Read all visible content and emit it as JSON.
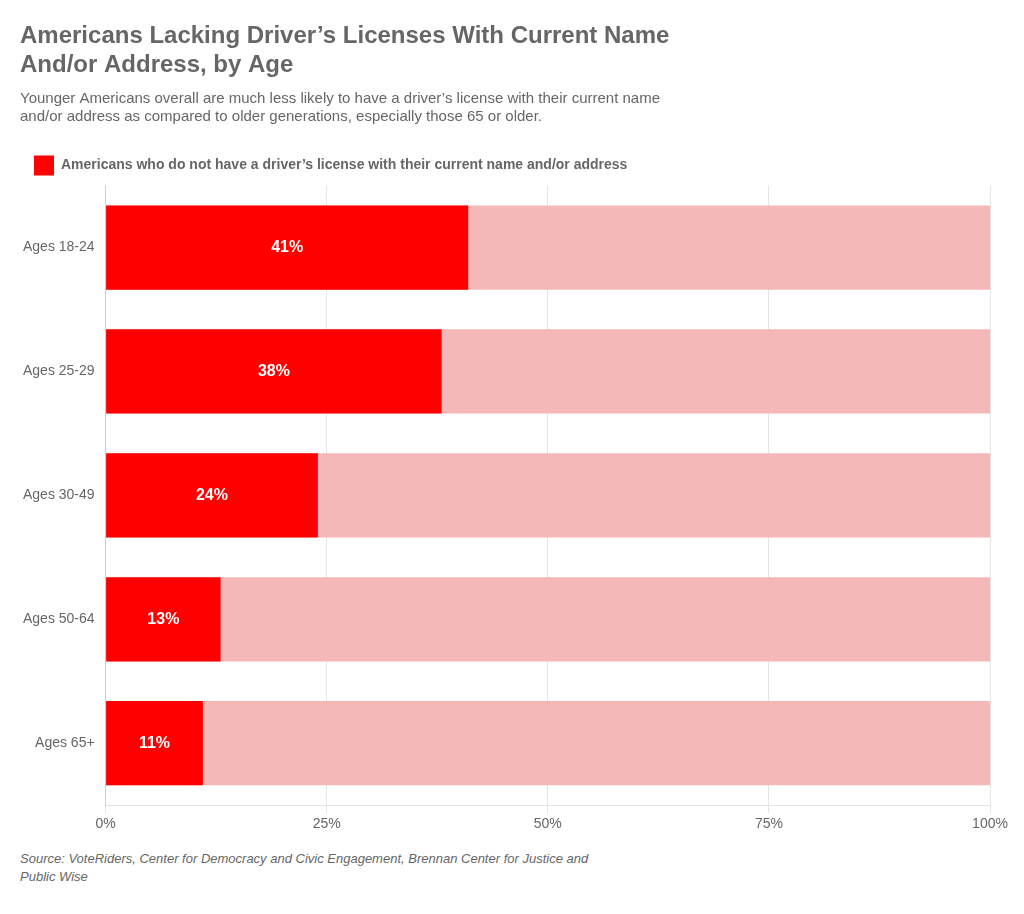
{
  "chart_data": {
    "type": "bar",
    "orientation": "horizontal",
    "title": "Americans Lacking Driver’s Licenses With Current Name\nAnd/or Address, by Age",
    "subtitle": "Younger Americans overall are much less likely to have a driver’s license with their current name\nand/or address as compared to older generations, especially those 65 or older.",
    "source": "Source: VoteRiders, Center for Democracy and Civic Engagement, Brennan Center for Justice and\nPublic Wise",
    "categories": [
      "Ages 18-24",
      "Ages 25-29",
      "Ages 30-49",
      "Ages 50-64",
      "Ages 65+"
    ],
    "series": [
      {
        "name": "Americans who do not have a driver’s license with their current name and/or address",
        "color": "#FF0000",
        "values": [
          41,
          38,
          24,
          13,
          11
        ],
        "value_labels": [
          "41%",
          "38%",
          "24%",
          "13%",
          "11%"
        ]
      },
      {
        "color": "#F5B8B8",
        "values": [
          100,
          100,
          100,
          100,
          100
        ]
      }
    ],
    "xlim": [
      0,
      100
    ],
    "xticks": [
      {
        "value": 0,
        "label": "0%"
      },
      {
        "value": 25,
        "label": "25%"
      },
      {
        "value": 50,
        "label": "50%"
      },
      {
        "value": 75,
        "label": "75%"
      },
      {
        "value": 100,
        "label": "100%"
      }
    ],
    "grid": "x",
    "legend": "top-left",
    "data_labels": true
  }
}
